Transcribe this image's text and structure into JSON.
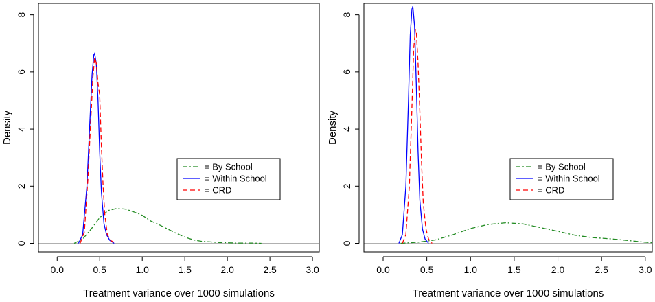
{
  "chart_data": [
    {
      "type": "line",
      "xlabel": "Treatment variance over 1000 simulations",
      "ylabel": "Density",
      "xlim": [
        -0.22,
        3.08
      ],
      "ylim": [
        -0.3,
        8.4
      ],
      "xticks": [
        "0.0",
        "0.5",
        "1.0",
        "1.5",
        "2.0",
        "2.5",
        "3.0"
      ],
      "yticks": [
        "0",
        "2",
        "4",
        "6",
        "8"
      ],
      "legend": {
        "position": "center-right",
        "entries": [
          "= By School",
          "= Within School",
          "= CRD"
        ]
      },
      "series": [
        {
          "name": "= By School",
          "style": "dashdot",
          "color": "#228b22",
          "x": [
            0.2,
            0.3,
            0.4,
            0.5,
            0.6,
            0.7,
            0.8,
            0.9,
            1.0,
            1.1,
            1.2,
            1.3,
            1.4,
            1.5,
            1.6,
            1.7,
            1.8,
            1.9,
            2.0,
            2.1,
            2.2,
            2.3,
            2.4
          ],
          "y": [
            0.0,
            0.15,
            0.5,
            0.9,
            1.15,
            1.22,
            1.2,
            1.1,
            0.98,
            0.78,
            0.65,
            0.5,
            0.35,
            0.22,
            0.12,
            0.07,
            0.05,
            0.03,
            0.02,
            0.01,
            0.01,
            0.01,
            0.0
          ]
        },
        {
          "name": "= Within School",
          "style": "solid",
          "color": "#0000ff",
          "x": [
            0.25,
            0.3,
            0.35,
            0.38,
            0.41,
            0.43,
            0.44,
            0.46,
            0.48,
            0.5,
            0.52,
            0.55,
            0.58,
            0.62,
            0.67
          ],
          "y": [
            0.0,
            0.3,
            2.0,
            4.0,
            5.9,
            6.6,
            6.65,
            6.3,
            5.0,
            3.2,
            1.8,
            0.7,
            0.3,
            0.1,
            0.0
          ]
        },
        {
          "name": "= CRD",
          "style": "dashed",
          "color": "#ff0000",
          "x": [
            0.27,
            0.32,
            0.36,
            0.39,
            0.42,
            0.44,
            0.46,
            0.48,
            0.5,
            0.52,
            0.54,
            0.56,
            0.59,
            0.63,
            0.69
          ],
          "y": [
            0.0,
            0.4,
            2.2,
            4.0,
            5.8,
            6.5,
            6.3,
            5.6,
            5.2,
            3.4,
            2.0,
            1.0,
            0.3,
            0.1,
            0.0
          ]
        }
      ]
    },
    {
      "type": "line",
      "xlabel": "Treatment variance over 1000 simulations",
      "ylabel": "Density",
      "xlim": [
        -0.22,
        3.08
      ],
      "ylim": [
        -0.3,
        8.4
      ],
      "xticks": [
        "0.0",
        "0.5",
        "1.0",
        "1.5",
        "2.0",
        "2.5",
        "3.0"
      ],
      "yticks": [
        "0",
        "2",
        "4",
        "6",
        "8"
      ],
      "legend": {
        "position": "center-right",
        "entries": [
          "= By School",
          "= Within School",
          "= CRD"
        ]
      },
      "series": [
        {
          "name": "= By School",
          "style": "dashdot",
          "color": "#228b22",
          "x": [
            0.2,
            0.4,
            0.6,
            0.8,
            1.0,
            1.2,
            1.4,
            1.6,
            1.8,
            2.0,
            2.2,
            2.4,
            2.6,
            2.8,
            3.0,
            3.08
          ],
          "y": [
            0.0,
            0.04,
            0.12,
            0.3,
            0.52,
            0.66,
            0.72,
            0.68,
            0.55,
            0.42,
            0.28,
            0.2,
            0.16,
            0.1,
            0.04,
            0.02
          ]
        },
        {
          "name": "= Within School",
          "style": "solid",
          "color": "#0000ff",
          "x": [
            0.18,
            0.22,
            0.26,
            0.29,
            0.31,
            0.33,
            0.34,
            0.36,
            0.38,
            0.4,
            0.42,
            0.45,
            0.48,
            0.52
          ],
          "y": [
            0.0,
            0.3,
            2.0,
            5.0,
            7.3,
            8.2,
            8.3,
            7.6,
            5.5,
            3.2,
            1.5,
            0.5,
            0.15,
            0.0
          ]
        },
        {
          "name": "= CRD",
          "style": "dashed",
          "color": "#ff0000",
          "x": [
            0.22,
            0.26,
            0.3,
            0.33,
            0.35,
            0.37,
            0.38,
            0.4,
            0.42,
            0.44,
            0.46,
            0.49,
            0.52,
            0.56
          ],
          "y": [
            0.0,
            0.3,
            2.0,
            4.8,
            6.8,
            7.5,
            7.4,
            6.3,
            4.6,
            2.8,
            1.4,
            0.5,
            0.15,
            0.0
          ]
        }
      ]
    }
  ]
}
